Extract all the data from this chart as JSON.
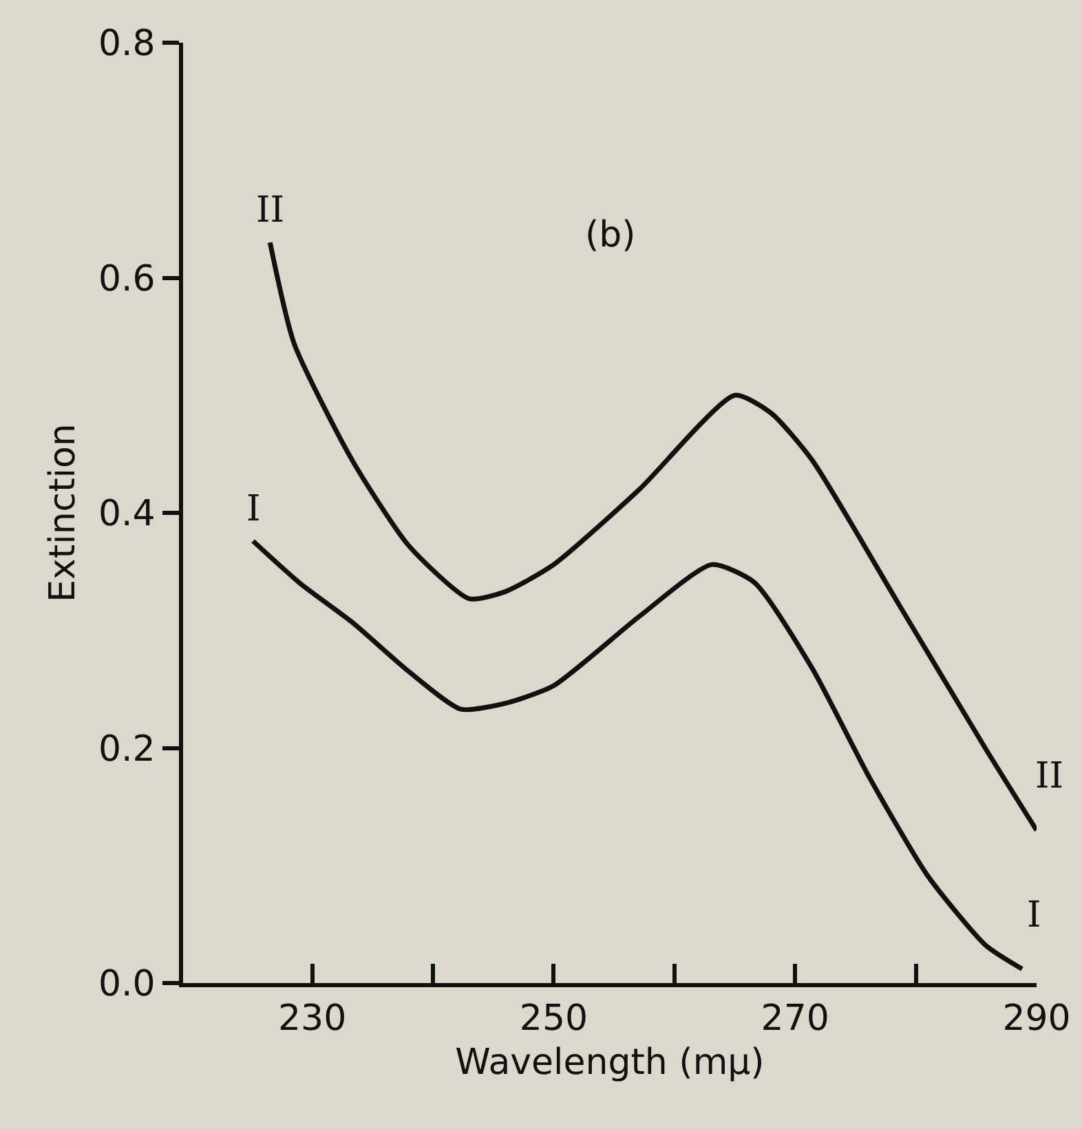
{
  "chart_data": {
    "type": "line",
    "xlabel": "Wavelength (mμ)",
    "ylabel": "Extinction",
    "annotations": [
      "(b)"
    ],
    "xlim": [
      219.3,
      290
    ],
    "xticks": [
      {
        "value": 230,
        "label": "230"
      },
      {
        "value": 240,
        "label": null
      },
      {
        "value": 250,
        "label": "250"
      },
      {
        "value": 260,
        "label": null
      },
      {
        "value": 270,
        "label": "270"
      },
      {
        "value": 280,
        "label": null
      },
      {
        "value": 290,
        "label": "290"
      }
    ],
    "ylim": [
      0,
      0.8
    ],
    "yticks": [
      {
        "value": 0,
        "label": "0.0"
      },
      0.2,
      0.4,
      0.6,
      0.8
    ],
    "grid": false,
    "legend": false,
    "marker": "none",
    "line_style": "solid",
    "series": [
      {
        "name": "I",
        "color": "#111111",
        "x": [
          225.1,
          229,
          233.3,
          238,
          242.3,
          246,
          250,
          257.1,
          263.1,
          266.6,
          271.4,
          276.2,
          281,
          285.8,
          288.8
        ],
        "values": [
          0.376,
          0.34,
          0.307,
          0.265,
          0.233,
          0.238,
          0.253,
          0.312,
          0.356,
          0.341,
          0.268,
          0.174,
          0.091,
          0.032,
          0.012
        ]
      },
      {
        "name": "II",
        "color": "#111111",
        "x": [
          226.5,
          228.5,
          233.3,
          238,
          243,
          246,
          250,
          257.1,
          265,
          268,
          271.4,
          278.6,
          285.8,
          290
        ],
        "values": [
          0.63,
          0.544,
          0.445,
          0.372,
          0.327,
          0.333,
          0.356,
          0.42,
          0.5,
          0.485,
          0.445,
          0.322,
          0.199,
          0.13
        ]
      }
    ]
  }
}
